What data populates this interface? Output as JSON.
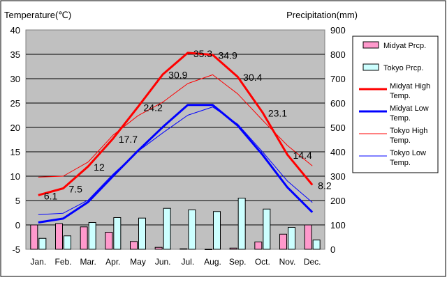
{
  "chart_data": {
    "type": "bar+line",
    "title": "",
    "left_axis_label": "Temperature(℃)",
    "right_axis_label": "Precipitation(mm)",
    "left_axis": {
      "min": -5,
      "max": 40,
      "step": 5
    },
    "right_axis": {
      "min": 0,
      "max": 900,
      "step": 100
    },
    "categories": [
      "Jan.",
      "Feb.",
      "Mar.",
      "Apr.",
      "May",
      "Jun.",
      "Jul.",
      "Aug.",
      "Sep.",
      "Oct.",
      "Nov.",
      "Dec."
    ],
    "bars": [
      {
        "name": "Midyat Prcp.",
        "color": "#ff99cc",
        "values": [
          100,
          105,
          92,
          70,
          32,
          8,
          2,
          0,
          5,
          30,
          62,
          100
        ]
      },
      {
        "name": "Tokyo Prcp.",
        "color": "#ccffff",
        "values": [
          45,
          55,
          110,
          130,
          128,
          168,
          162,
          155,
          210,
          165,
          90,
          38
        ]
      }
    ],
    "lines": [
      {
        "name": "Midyat High Temp.",
        "color": "#ff0000",
        "width": 3,
        "values": [
          6.1,
          7.5,
          12,
          17.7,
          24.2,
          30.9,
          35.3,
          34.9,
          30.4,
          23.1,
          14.4,
          8.2
        ],
        "labels": [
          "6.1",
          "7.5",
          "12",
          "17.7",
          "24.2",
          "30.9",
          "35.3",
          "34.9",
          "30.4",
          "23.1",
          "14.4",
          "8.2"
        ]
      },
      {
        "name": "Midyat Low Temp.",
        "color": "#0000ff",
        "width": 3,
        "values": [
          0.5,
          1.3,
          4.7,
          10,
          15.2,
          20.1,
          24.6,
          24.6,
          20.4,
          14.4,
          7.7,
          2.6
        ]
      },
      {
        "name": "Tokyo High Temp.",
        "color": "#ff0000",
        "width": 1,
        "values": [
          9.8,
          10,
          12.9,
          18.4,
          22.4,
          25.2,
          29,
          30.8,
          26.9,
          21.5,
          16.3,
          12.1
        ]
      },
      {
        "name": "Tokyo Low Temp.",
        "color": "#0000ff",
        "width": 1,
        "values": [
          2.1,
          2.4,
          5.1,
          10.4,
          15.1,
          18.9,
          22.5,
          24.2,
          20.7,
          15,
          9,
          4.6
        ]
      }
    ],
    "grid": true,
    "legend_position": "right",
    "plot_background": "#c0c0c0"
  }
}
